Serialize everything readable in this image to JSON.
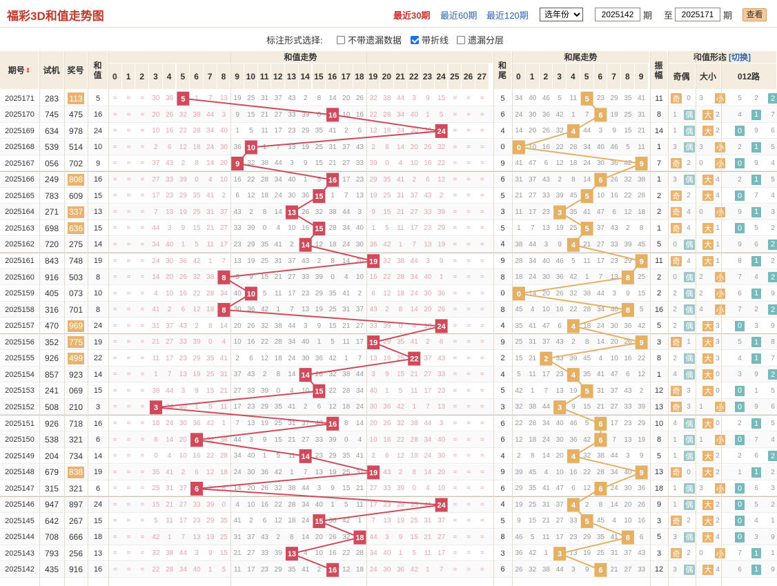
{
  "header": {
    "title": "福彩3D和值走势图",
    "links": [
      "最近30期",
      "最近60期",
      "最近120期"
    ],
    "active_link": 0,
    "year_select": "选年份",
    "from_issue": "2025142",
    "from_suffix": "期",
    "to_prefix": "至",
    "to_issue": "2025171",
    "to_suffix": "期",
    "query_button": "查看"
  },
  "options": {
    "label": "标注形式选择:",
    "items": [
      {
        "label": "不带遗漏数据",
        "checked": false
      },
      {
        "label": "带折线",
        "checked": true
      },
      {
        "label": "遗漏分层",
        "checked": false
      }
    ]
  },
  "table_headers": {
    "issue": "期号",
    "sort_icon": "sort-arrows-icon",
    "test": "试机",
    "prize": "奖号",
    "sum": "和值",
    "sum_trend": "和值走势",
    "tail": "和尾",
    "tail_trend": "和尾走势",
    "amplitude": "振幅",
    "form": "和值形态",
    "switch": "[切换]",
    "odd_even": "奇偶",
    "big_small": "大小",
    "road": "012路",
    "sum_digits": [
      "0",
      "1",
      "2",
      "3",
      "4",
      "5",
      "6",
      "7",
      "8",
      "9",
      "10",
      "11",
      "12",
      "13",
      "14",
      "15",
      "16",
      "17",
      "18",
      "19",
      "20",
      "21",
      "22",
      "23",
      "24",
      "25",
      "26",
      "27"
    ],
    "tail_digits": [
      "0",
      "1",
      "2",
      "3",
      "4",
      "5",
      "6",
      "7",
      "8",
      "9"
    ]
  },
  "labels": {
    "odd": "奇",
    "even": "偶",
    "big": "大",
    "small": "小",
    "road": [
      "0",
      "1",
      "2"
    ]
  },
  "colors": {
    "sum_marker": "#cf4a5a",
    "tail_marker": "#e3b064",
    "highlight_prize": "#e9b36d",
    "odd_tag": "#e9b36d",
    "even_tag": "#9cc7c8",
    "big_tag": "#e9b36d",
    "small_tag": "#e9b36d",
    "road_tag": "#78b9bb",
    "link": "#2c64b3",
    "title": "#c0392b"
  },
  "chart_data": {
    "type": "line",
    "title": "福彩3D和值走势图",
    "x": [
      "2025171",
      "2025170",
      "2025169",
      "2025168",
      "2025167",
      "2025166",
      "2025165",
      "2025164",
      "2025163",
      "2025162",
      "2025161",
      "2025160",
      "2025159",
      "2025158",
      "2025157",
      "2025156",
      "2025155",
      "2025154",
      "2025153",
      "2025152",
      "2025151",
      "2025150",
      "2025149",
      "2025148",
      "2025147",
      "2025146",
      "2025145",
      "2025144",
      "2025143",
      "2025142"
    ],
    "series": [
      {
        "name": "和值",
        "values": [
          5,
          16,
          24,
          10,
          9,
          16,
          15,
          13,
          15,
          14,
          19,
          8,
          10,
          8,
          24,
          19,
          22,
          14,
          15,
          3,
          16,
          6,
          14,
          19,
          6,
          24,
          15,
          18,
          13,
          16
        ]
      },
      {
        "name": "和尾",
        "values": [
          5,
          6,
          4,
          0,
          9,
          6,
          5,
          3,
          5,
          4,
          9,
          8,
          0,
          8,
          4,
          9,
          2,
          4,
          5,
          3,
          6,
          6,
          4,
          9,
          6,
          4,
          5,
          8,
          3,
          6
        ]
      }
    ],
    "test_numbers": [
      "283",
      "745",
      "634",
      "539",
      "056",
      "249",
      "783",
      "271",
      "698",
      "720",
      "843",
      "916",
      "405",
      "316",
      "470",
      "352",
      "926",
      "857",
      "241",
      "508",
      "926",
      "538",
      "204",
      "679",
      "315",
      "947",
      "642",
      "708",
      "793",
      "435"
    ],
    "prize_numbers": [
      "113",
      "475",
      "978",
      "514",
      "702",
      "808",
      "609",
      "337",
      "636",
      "275",
      "748",
      "503",
      "073",
      "701",
      "969",
      "775",
      "499",
      "923",
      "069",
      "210",
      "718",
      "321",
      "734",
      "838",
      "321",
      "897",
      "267",
      "666",
      "256",
      "916"
    ],
    "highlight_prize": [
      true,
      false,
      false,
      false,
      false,
      true,
      false,
      true,
      true,
      false,
      false,
      false,
      false,
      false,
      true,
      true,
      true,
      false,
      false,
      false,
      false,
      false,
      false,
      true,
      false,
      false,
      false,
      false,
      false,
      false
    ],
    "amplitude": [
      11,
      8,
      14,
      1,
      7,
      1,
      2,
      2,
      1,
      5,
      11,
      2,
      2,
      16,
      5,
      3,
      8,
      1,
      12,
      13,
      10,
      8,
      5,
      13,
      18,
      9,
      3,
      5,
      3,
      12
    ],
    "sum_range": [
      0,
      27
    ],
    "tail_range": [
      0,
      9
    ]
  }
}
